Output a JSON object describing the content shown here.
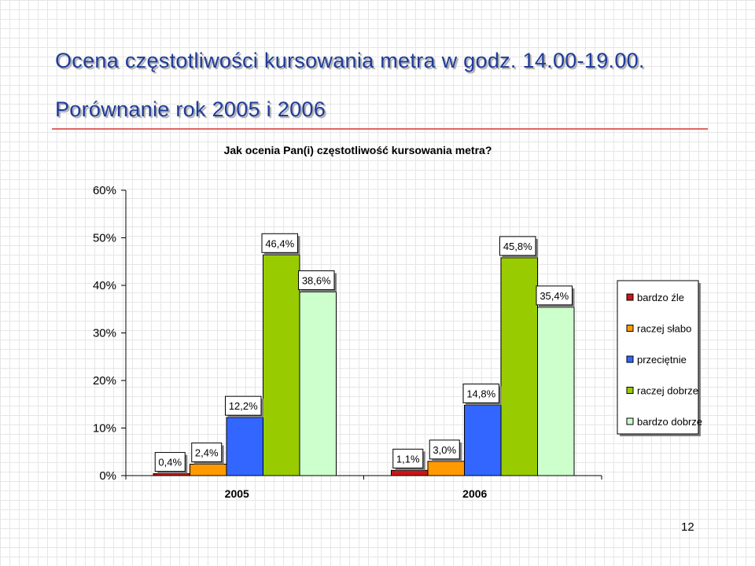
{
  "slide": {
    "title": "Ocena częstotliwości kursowania metra w godz. 14.00-19.00.",
    "subtitle": "Porównanie rok 2005 i 2006",
    "page_number": "12"
  },
  "chart_data": {
    "type": "bar",
    "title": "Jak ocenia Pan(i) częstotliwość kursowania metra?",
    "categories": [
      "2005",
      "2006"
    ],
    "series": [
      {
        "name": "bardzo źle",
        "color": "#cc1414",
        "values": [
          0.4,
          1.1
        ],
        "labels": [
          "0,4%",
          "1,1%"
        ]
      },
      {
        "name": "raczej słabo",
        "color": "#ff9a00",
        "values": [
          2.4,
          3.0
        ],
        "labels": [
          "2,4%",
          "3,0%"
        ]
      },
      {
        "name": "przeciętnie",
        "color": "#3366ff",
        "values": [
          12.2,
          14.8
        ],
        "labels": [
          "12,2%",
          "14,8%"
        ]
      },
      {
        "name": "raczej dobrze",
        "color": "#99cc00",
        "values": [
          46.4,
          45.8
        ],
        "labels": [
          "46,4%",
          "45,8%"
        ]
      },
      {
        "name": "bardzo dobrze",
        "color": "#ccffcc",
        "values": [
          38.6,
          35.4
        ],
        "labels": [
          "38,6%",
          "35,4%"
        ]
      }
    ],
    "ylim": [
      0,
      60
    ],
    "yticks": [
      "0%",
      "10%",
      "20%",
      "30%",
      "40%",
      "50%",
      "60%"
    ],
    "grid": false,
    "legend_position": "right"
  }
}
